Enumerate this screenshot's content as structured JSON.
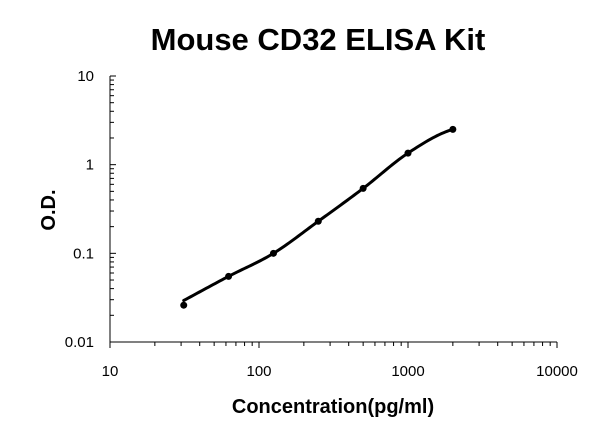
{
  "chart_data": {
    "type": "scatter",
    "title": "Mouse CD32 ELISA Kit",
    "xlabel": "Concentration(pg/ml)",
    "ylabel": "O.D.",
    "x_scale": "log",
    "y_scale": "log",
    "xlim": [
      10,
      10000
    ],
    "ylim": [
      0.01,
      10
    ],
    "x_ticks": [
      10,
      100,
      1000,
      10000
    ],
    "x_tick_labels": [
      "10",
      "100",
      "1000",
      "10000"
    ],
    "y_ticks": [
      0.01,
      0.1,
      1,
      10
    ],
    "y_tick_labels": [
      "0.01",
      "0.1",
      "1",
      "10"
    ],
    "grid": false,
    "series": [
      {
        "x": [
          31.25,
          62.5,
          125,
          250,
          500,
          1000,
          2000
        ],
        "y": [
          0.026,
          0.055,
          0.1,
          0.23,
          0.54,
          1.35,
          2.5
        ],
        "fit_curve": true,
        "color": "#000000"
      }
    ]
  }
}
